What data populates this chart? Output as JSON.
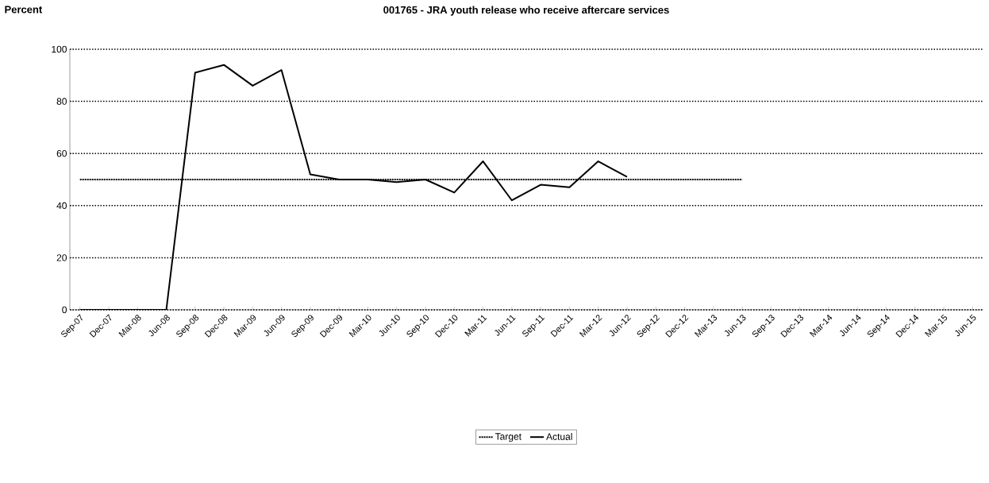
{
  "chart_data": {
    "type": "line",
    "title": "001765 - JRA youth release who receive aftercare services",
    "annotations": [
      "Percent"
    ],
    "categories": [
      "Sep-07",
      "Dec-07",
      "Mar-08",
      "Jun-08",
      "Sep-08",
      "Dec-08",
      "Mar-09",
      "Jun-09",
      "Sep-09",
      "Dec-09",
      "Mar-10",
      "Jun-10",
      "Sep-10",
      "Dec-10",
      "Mar-11",
      "Jun-11",
      "Sep-11",
      "Dec-11",
      "Mar-12",
      "Jun-12",
      "Sep-12",
      "Dec-12",
      "Mar-13",
      "Jun-13",
      "Sep-13",
      "Dec-13",
      "Mar-14",
      "Jun-14",
      "Sep-14",
      "Dec-14",
      "Mar-15",
      "Jun-15"
    ],
    "series": [
      {
        "name": "Target",
        "color": "#000000",
        "line_style": "dotted",
        "values": [
          50,
          50,
          50,
          50,
          50,
          50,
          50,
          50,
          50,
          50,
          50,
          50,
          50,
          50,
          50,
          50,
          50,
          50,
          50,
          50,
          50,
          50,
          50,
          50,
          null,
          null,
          null,
          null,
          null,
          null,
          null,
          null
        ]
      },
      {
        "name": "Actual",
        "color": "#000000",
        "line_style": "solid",
        "values": [
          0,
          0,
          0,
          0,
          91,
          94,
          86,
          92,
          52,
          50,
          50,
          49,
          50,
          45,
          57,
          42,
          48,
          47,
          57,
          51,
          null,
          null,
          null,
          null,
          null,
          null,
          null,
          null,
          null,
          null,
          null,
          null
        ]
      }
    ],
    "ylim": [
      0,
      100
    ],
    "yticks": [
      0,
      20,
      40,
      60,
      80,
      100
    ],
    "grid": "y",
    "legend": "bottom",
    "marker": "none"
  }
}
